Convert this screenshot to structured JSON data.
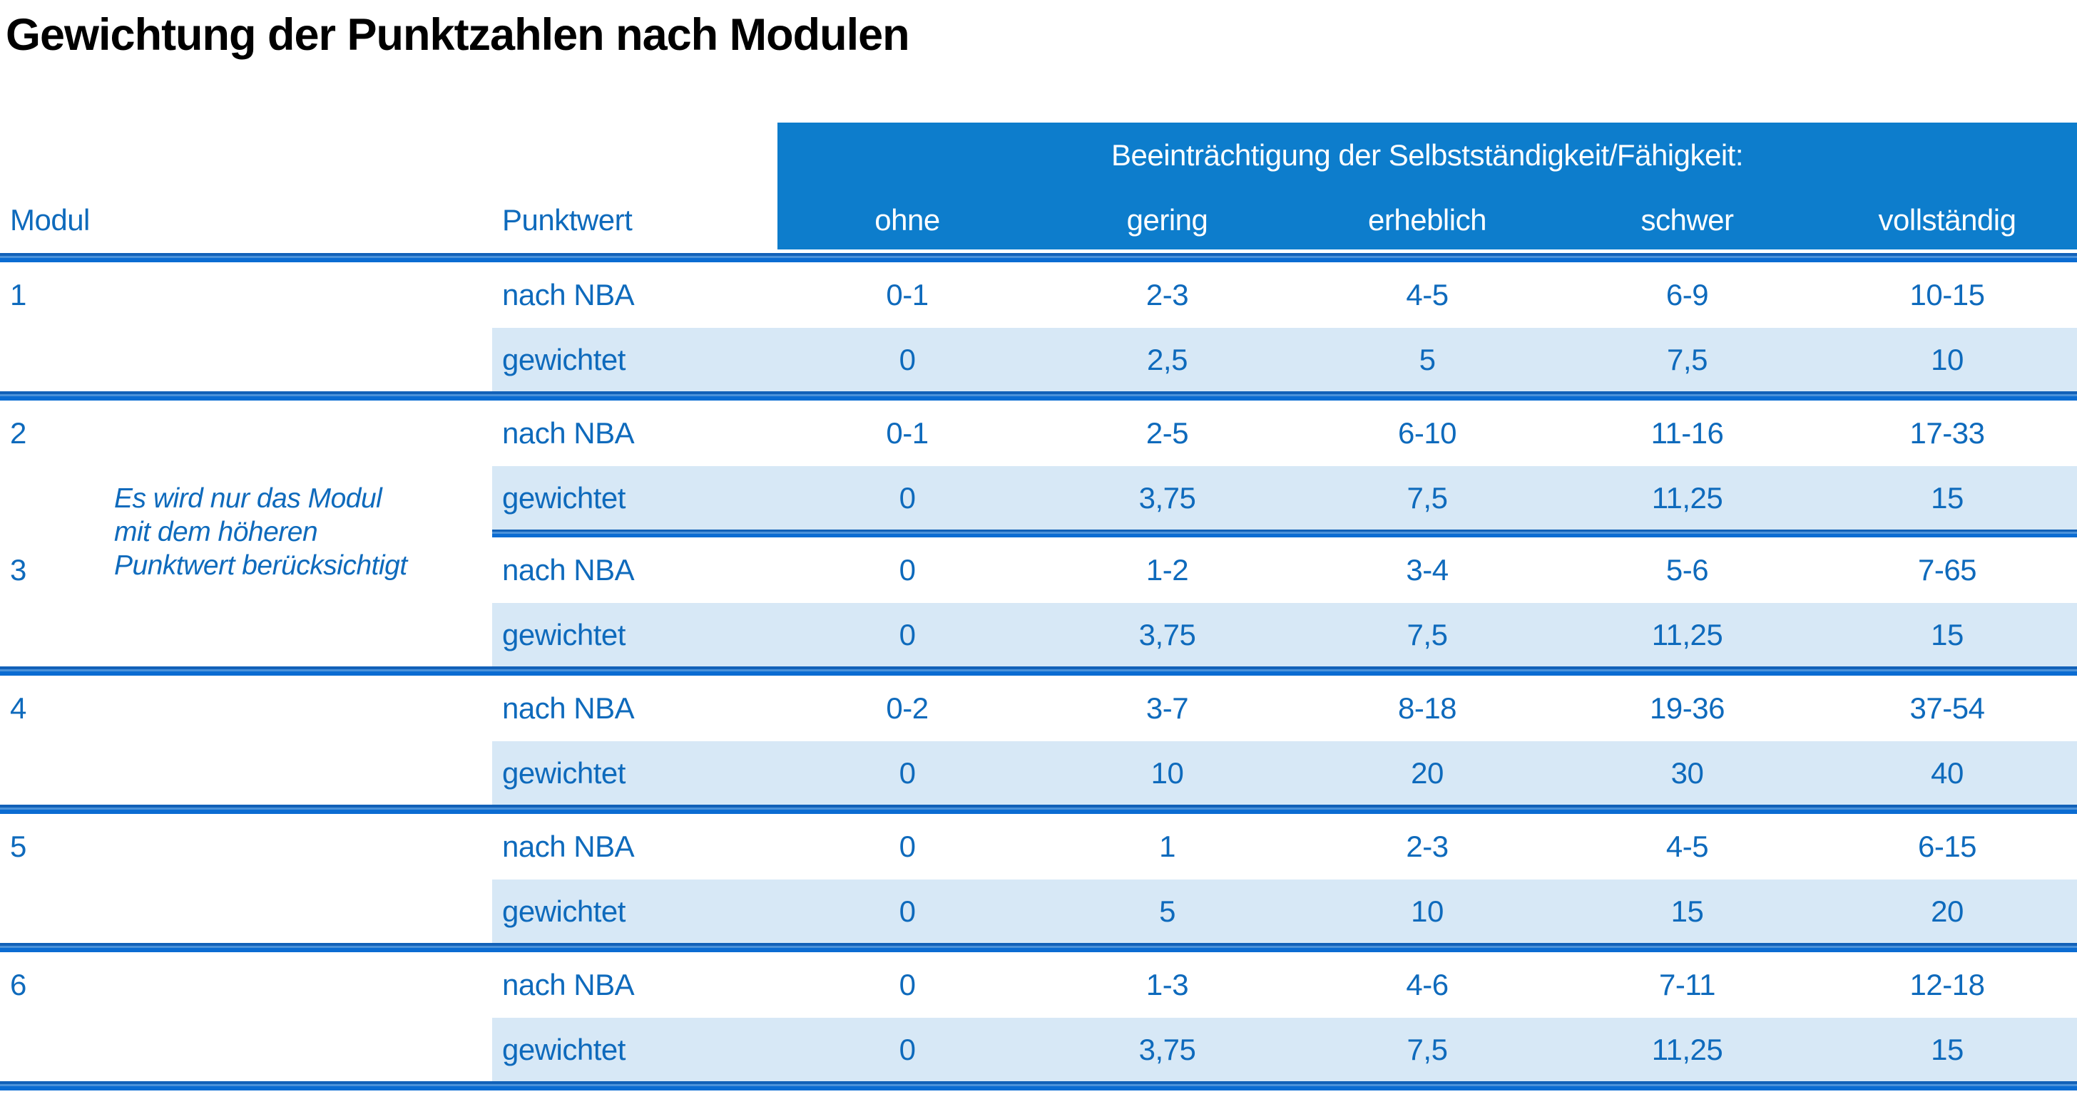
{
  "title": "Gewichtung der Punktzahlen nach Modulen",
  "table": {
    "group_header": "Beeinträchtigung der Selbstständigkeit/Fähigkeit:",
    "col_modul": "Modul",
    "col_punktwert": "Punktwert",
    "levels": [
      "ohne",
      "gering",
      "erheblich",
      "schwer",
      "vollständig"
    ],
    "labels": {
      "nba": "nach NBA",
      "weighted": "gewichtet"
    },
    "note_lines": [
      "Es wird nur das Modul",
      "mit dem höheren",
      "Punktwert berücksichtigt"
    ],
    "modules": [
      {
        "id": "1",
        "nba": [
          "0-1",
          "2-3",
          "4-5",
          "6-9",
          "10-15"
        ],
        "gewichtet": [
          "0",
          "2,5",
          "5",
          "7,5",
          "10"
        ]
      },
      {
        "id": "2",
        "nba": [
          "0-1",
          "2-5",
          "6-10",
          "11-16",
          "17-33"
        ],
        "gewichtet": [
          "0",
          "3,75",
          "7,5",
          "11,25",
          "15"
        ]
      },
      {
        "id": "3",
        "nba": [
          "0",
          "1-2",
          "3-4",
          "5-6",
          "7-65"
        ],
        "gewichtet": [
          "0",
          "3,75",
          "7,5",
          "11,25",
          "15"
        ]
      },
      {
        "id": "4",
        "nba": [
          "0-2",
          "3-7",
          "8-18",
          "19-36",
          "37-54"
        ],
        "gewichtet": [
          "0",
          "10",
          "20",
          "30",
          "40"
        ]
      },
      {
        "id": "5",
        "nba": [
          "0",
          "1",
          "2-3",
          "4-5",
          "6-15"
        ],
        "gewichtet": [
          "0",
          "5",
          "10",
          "15",
          "20"
        ]
      },
      {
        "id": "6",
        "nba": [
          "0",
          "1-3",
          "4-6",
          "7-11",
          "12-18"
        ],
        "gewichtet": [
          "0",
          "3,75",
          "7,5",
          "11,25",
          "15"
        ]
      }
    ],
    "colors": {
      "header_bg": "#0d7dcc",
      "band_bg": "#d7e8f6",
      "separator": "#0b6cd2",
      "text_blue": "#0e6abc",
      "header_text": "#ffffff",
      "title_text": "#000000"
    }
  }
}
